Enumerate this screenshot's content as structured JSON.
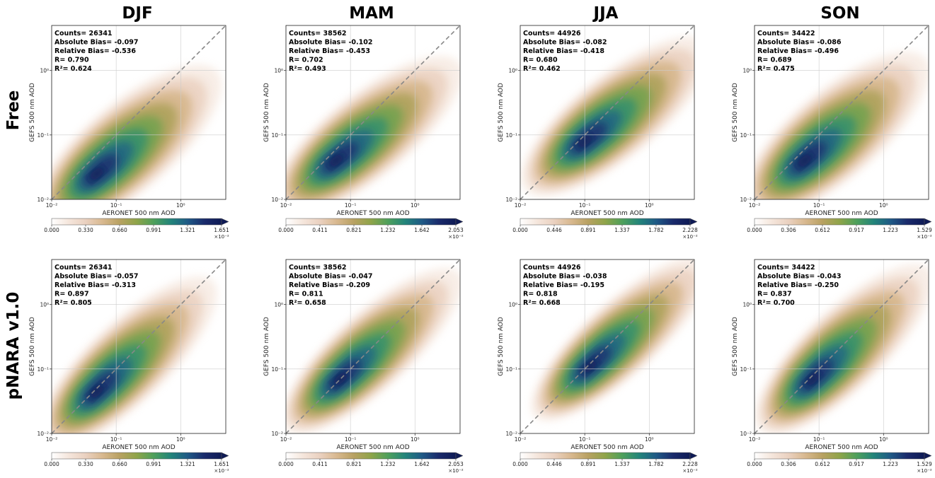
{
  "figure": {
    "column_titles": [
      "DJF",
      "MAM",
      "JJA",
      "SON"
    ],
    "row_titles": [
      "Free",
      "pNARA v1.0"
    ],
    "colormap": [
      "#ffffff",
      "#f5e6dc",
      "#ead1c0",
      "#d8b88f",
      "#b8a162",
      "#8fa449",
      "#4fa05b",
      "#23857a",
      "#1f5a86",
      "#1a2a6b",
      "#0e1a55"
    ],
    "diagonal_color": "#888888"
  },
  "chart_data": [
    {
      "type": "heatmap",
      "row": "Free",
      "column": "DJF",
      "title": "DJF",
      "xlabel": "AERONET 500 nm AOD",
      "ylabel": "GEFS 500 nm AOD",
      "xscale": "log",
      "yscale": "log",
      "xlim": [
        0.01,
        5
      ],
      "ylim": [
        0.01,
        5
      ],
      "xticks": [
        "10⁻²",
        "10⁻¹",
        "10⁰"
      ],
      "yticks": [
        "10⁻²",
        "10⁻¹",
        "10⁰"
      ],
      "grid": true,
      "one_to_one_line": true,
      "stats": [
        "Counts= 26341",
        "Absolute Bias= -0.097",
        "Relative Bias= -0.536",
        "R= 0.790",
        "R²= 0.624"
      ],
      "density_peak": {
        "x": 0.05,
        "y": 0.025,
        "spread": 0.45,
        "tilt": 0.85
      },
      "colorbar": {
        "ticks": [
          "0.000",
          "0.330",
          "0.660",
          "0.991",
          "1.321",
          "1.651"
        ],
        "multiplier": "×10⁻²",
        "extend": "max"
      }
    },
    {
      "type": "heatmap",
      "row": "Free",
      "column": "MAM",
      "title": "MAM",
      "xlabel": "AERONET 500 nm AOD",
      "ylabel": "GEFS 500 nm AOD",
      "xscale": "log",
      "yscale": "log",
      "xlim": [
        0.01,
        5
      ],
      "ylim": [
        0.01,
        5
      ],
      "xticks": [
        "10⁻²",
        "10⁻¹",
        "10⁰"
      ],
      "yticks": [
        "10⁻²",
        "10⁻¹",
        "10⁰"
      ],
      "grid": true,
      "one_to_one_line": true,
      "stats": [
        "Counts= 38562",
        "Absolute Bias= -0.102",
        "Relative Bias= -0.453",
        "R= 0.702",
        "R²= 0.493"
      ],
      "density_peak": {
        "x": 0.06,
        "y": 0.04,
        "spread": 0.42,
        "tilt": 0.8
      },
      "colorbar": {
        "ticks": [
          "0.000",
          "0.411",
          "0.821",
          "1.232",
          "1.642",
          "2.053"
        ],
        "multiplier": "×10⁻²",
        "extend": "max"
      }
    },
    {
      "type": "heatmap",
      "row": "Free",
      "column": "JJA",
      "title": "JJA",
      "xlabel": "AERONET 500 nm AOD",
      "ylabel": "GEFS 500 nm AOD",
      "xscale": "log",
      "yscale": "log",
      "xlim": [
        0.01,
        5
      ],
      "ylim": [
        0.01,
        5
      ],
      "xticks": [
        "10⁻²",
        "10⁻¹",
        "10⁰"
      ],
      "yticks": [
        "10⁻²",
        "10⁻¹",
        "10⁰"
      ],
      "grid": true,
      "one_to_one_line": true,
      "stats": [
        "Counts= 44926",
        "Absolute Bias= -0.082",
        "Relative Bias= -0.418",
        "R= 0.680",
        "R²= 0.462"
      ],
      "density_peak": {
        "x": 0.1,
        "y": 0.08,
        "spread": 0.42,
        "tilt": 0.8
      },
      "colorbar": {
        "ticks": [
          "0.000",
          "0.446",
          "0.891",
          "1.337",
          "1.782",
          "2.228"
        ],
        "multiplier": "×10⁻²",
        "extend": "max"
      }
    },
    {
      "type": "heatmap",
      "row": "Free",
      "column": "SON",
      "title": "SON",
      "xlabel": "AERONET 500 nm AOD",
      "ylabel": "GEFS 500 nm AOD",
      "xscale": "log",
      "yscale": "log",
      "xlim": [
        0.01,
        5
      ],
      "ylim": [
        0.01,
        5
      ],
      "xticks": [
        "10⁻²",
        "10⁻¹",
        "10⁰"
      ],
      "yticks": [
        "10⁻²",
        "10⁻¹",
        "10⁰"
      ],
      "grid": true,
      "one_to_one_line": true,
      "stats": [
        "Counts= 34422",
        "Absolute Bias= -0.086",
        "Relative Bias= -0.496",
        "R= 0.689",
        "R²= 0.475"
      ],
      "density_peak": {
        "x": 0.06,
        "y": 0.04,
        "spread": 0.45,
        "tilt": 0.85
      },
      "colorbar": {
        "ticks": [
          "0.000",
          "0.306",
          "0.612",
          "0.917",
          "1.223",
          "1.529"
        ],
        "multiplier": "×10⁻²",
        "extend": "max"
      }
    },
    {
      "type": "heatmap",
      "row": "pNARA v1.0",
      "column": "DJF",
      "title": "DJF",
      "xlabel": "AERONET 500 nm AOD",
      "ylabel": "GEFS 500 nm AOD",
      "xscale": "log",
      "yscale": "log",
      "xlim": [
        0.01,
        5
      ],
      "ylim": [
        0.01,
        5
      ],
      "xticks": [
        "10⁻²",
        "10⁻¹",
        "10⁰"
      ],
      "yticks": [
        "10⁻²",
        "10⁻¹",
        "10⁰"
      ],
      "grid": true,
      "one_to_one_line": true,
      "stats": [
        "Counts= 26341",
        "Absolute Bias= -0.057",
        "Relative Bias= -0.313",
        "R= 0.897",
        "R²= 0.805"
      ],
      "density_peak": {
        "x": 0.05,
        "y": 0.045,
        "spread": 0.4,
        "tilt": 0.95
      },
      "colorbar": {
        "ticks": [
          "0.000",
          "0.330",
          "0.660",
          "0.991",
          "1.321",
          "1.651"
        ],
        "multiplier": "×10⁻²",
        "extend": "max"
      }
    },
    {
      "type": "heatmap",
      "row": "pNARA v1.0",
      "column": "MAM",
      "title": "MAM",
      "xlabel": "AERONET 500 nm AOD",
      "ylabel": "GEFS 500 nm AOD",
      "xscale": "log",
      "yscale": "log",
      "xlim": [
        0.01,
        5
      ],
      "ylim": [
        0.01,
        5
      ],
      "xticks": [
        "10⁻²",
        "10⁻¹",
        "10⁰"
      ],
      "yticks": [
        "10⁻²",
        "10⁻¹",
        "10⁰"
      ],
      "grid": true,
      "one_to_one_line": true,
      "stats": [
        "Counts= 38562",
        "Absolute Bias= -0.047",
        "Relative Bias= -0.209",
        "R= 0.811",
        "R²= 0.658"
      ],
      "density_peak": {
        "x": 0.07,
        "y": 0.07,
        "spread": 0.38,
        "tilt": 0.9
      },
      "colorbar": {
        "ticks": [
          "0.000",
          "0.411",
          "0.821",
          "1.232",
          "1.642",
          "2.053"
        ],
        "multiplier": "×10⁻²",
        "extend": "max"
      }
    },
    {
      "type": "heatmap",
      "row": "pNARA v1.0",
      "column": "JJA",
      "title": "JJA",
      "xlabel": "AERONET 500 nm AOD",
      "ylabel": "GEFS 500 nm AOD",
      "xscale": "log",
      "yscale": "log",
      "xlim": [
        0.01,
        5
      ],
      "ylim": [
        0.01,
        5
      ],
      "xticks": [
        "10⁻²",
        "10⁻¹",
        "10⁰"
      ],
      "yticks": [
        "10⁻²",
        "10⁻¹",
        "10⁰"
      ],
      "grid": true,
      "one_to_one_line": true,
      "stats": [
        "Counts= 44926",
        "Absolute Bias= -0.038",
        "Relative Bias= -0.195",
        "R= 0.818",
        "R²= 0.668"
      ],
      "density_peak": {
        "x": 0.12,
        "y": 0.11,
        "spread": 0.36,
        "tilt": 0.9
      },
      "colorbar": {
        "ticks": [
          "0.000",
          "0.446",
          "0.891",
          "1.337",
          "1.782",
          "2.228"
        ],
        "multiplier": "×10⁻²",
        "extend": "max"
      }
    },
    {
      "type": "heatmap",
      "row": "pNARA v1.0",
      "column": "SON",
      "title": "SON",
      "xlabel": "AERONET 500 nm AOD",
      "ylabel": "GEFS 500 nm AOD",
      "xscale": "log",
      "yscale": "log",
      "xlim": [
        0.01,
        5
      ],
      "ylim": [
        0.01,
        5
      ],
      "xticks": [
        "10⁻²",
        "10⁻¹",
        "10⁰"
      ],
      "yticks": [
        "10⁻²",
        "10⁻¹",
        "10⁰"
      ],
      "grid": true,
      "one_to_one_line": true,
      "stats": [
        "Counts= 34422",
        "Absolute Bias= -0.043",
        "Relative Bias= -0.250",
        "R= 0.837",
        "R²= 0.700"
      ],
      "density_peak": {
        "x": 0.08,
        "y": 0.07,
        "spread": 0.4,
        "tilt": 0.95
      },
      "colorbar": {
        "ticks": [
          "0.000",
          "0.306",
          "0.612",
          "0.917",
          "1.223",
          "1.529"
        ],
        "multiplier": "×10⁻²",
        "extend": "max"
      }
    }
  ]
}
